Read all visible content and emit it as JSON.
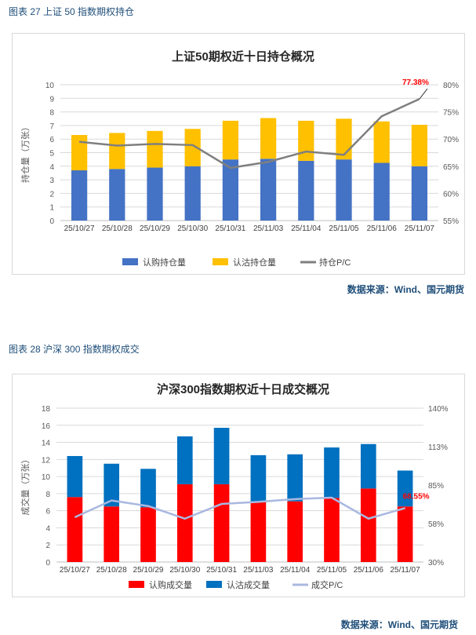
{
  "figure1": {
    "caption": "图表 27  上证 50 指数期权持仓",
    "source": "数据来源：Wind、国元期货"
  },
  "figure2": {
    "caption": "图表 28  沪深 300 指数期权成交",
    "source": "数据来源：Wind、国元期货"
  },
  "chart_data": [
    {
      "type": "bar",
      "stacked": true,
      "title": "上证50期权近十日持仓概况",
      "ylabel": "持仓量（万张）",
      "categories": [
        "25/10/27",
        "25/10/28",
        "25/10/29",
        "25/10/30",
        "25/10/31",
        "25/11/03",
        "25/11/04",
        "25/11/05",
        "25/11/06",
        "25/11/07"
      ],
      "series": [
        {
          "name": "认购持仓量",
          "color": "#4472c4",
          "values": [
            3.7,
            3.8,
            3.9,
            4.0,
            4.5,
            4.55,
            4.4,
            4.5,
            4.25,
            4.0
          ]
        },
        {
          "name": "认沽持仓量",
          "color": "#ffc000",
          "values": [
            2.6,
            2.65,
            2.7,
            2.75,
            2.85,
            3.0,
            2.95,
            3.0,
            3.05,
            3.05
          ]
        },
        {
          "name": "持仓P/C",
          "color": "#7f7f7f",
          "type": "line",
          "axis": "right",
          "values": [
            69.5,
            68.8,
            69.1,
            68.9,
            64.7,
            65.8,
            67.7,
            67.1,
            74.2,
            77.38
          ]
        }
      ],
      "ylim": [
        0,
        10
      ],
      "yticks": [
        0,
        1,
        2,
        3,
        4,
        5,
        6,
        7,
        8,
        9,
        10
      ],
      "y2lim": [
        55,
        80
      ],
      "y2ticks": [
        "55%",
        "60%",
        "65%",
        "70%",
        "75%",
        "80%"
      ],
      "annotation": "77.38%"
    },
    {
      "type": "bar",
      "stacked": true,
      "title": "沪深300指数期权近十日成交概况",
      "ylabel": "成交量（万张）",
      "categories": [
        "25/10/27",
        "25/10/28",
        "25/10/29",
        "25/10/30",
        "25/10/31",
        "25/11/03",
        "25/11/04",
        "25/11/05",
        "25/11/06",
        "25/11/07"
      ],
      "series": [
        {
          "name": "认购成交量",
          "color": "#ff0000",
          "values": [
            7.6,
            6.5,
            6.4,
            9.1,
            9.1,
            7.0,
            7.1,
            7.5,
            8.6,
            6.5
          ]
        },
        {
          "name": "认沽成交量",
          "color": "#0070c0",
          "values": [
            4.8,
            5.0,
            4.5,
            5.6,
            6.6,
            5.5,
            5.5,
            5.9,
            5.2,
            4.2
          ]
        },
        {
          "name": "成交P/C",
          "color": "#a9b8e0",
          "type": "line",
          "axis": "right",
          "values": [
            62,
            74,
            70,
            61,
            71.5,
            73,
            75,
            76,
            61,
            68.55
          ]
        }
      ],
      "ylim": [
        0,
        18
      ],
      "yticks": [
        0,
        2,
        4,
        6,
        8,
        10,
        12,
        14,
        16,
        18
      ],
      "y2lim": [
        30,
        140
      ],
      "y2ticks": [
        "30%",
        "58%",
        "85%",
        "113%",
        "140%"
      ],
      "annotation": "68.55%"
    }
  ]
}
